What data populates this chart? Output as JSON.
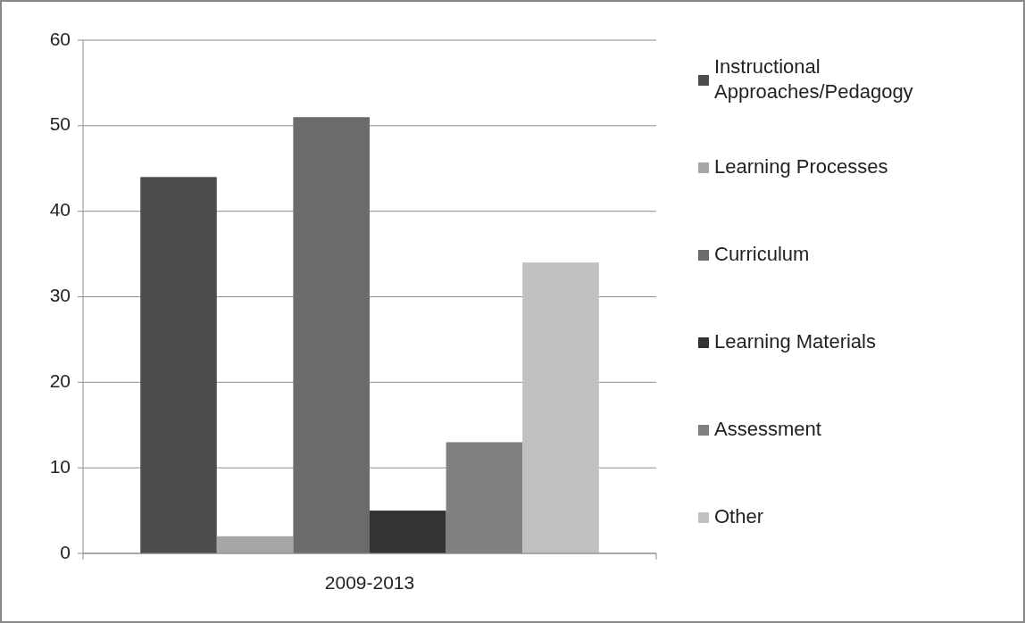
{
  "chart_data": {
    "type": "bar",
    "categories": [
      "2009-2013"
    ],
    "series": [
      {
        "name": "Instructional Approaches/Pedagogy",
        "color": "#4d4d4d",
        "values": [
          44
        ]
      },
      {
        "name": "Learning Processes",
        "color": "#a6a6a6",
        "values": [
          2
        ]
      },
      {
        "name": "Curriculum",
        "color": "#6b6b6b",
        "values": [
          51
        ]
      },
      {
        "name": "Learning Materials",
        "color": "#333333",
        "values": [
          5
        ]
      },
      {
        "name": "Assessment",
        "color": "#808080",
        "values": [
          13
        ]
      },
      {
        "name": "Other",
        "color": "#c0c0c0",
        "values": [
          34
        ]
      }
    ],
    "ylim": [
      0,
      60
    ],
    "yticks": [
      0,
      10,
      20,
      30,
      40,
      50,
      60
    ],
    "grid": "y",
    "legend": "right"
  }
}
